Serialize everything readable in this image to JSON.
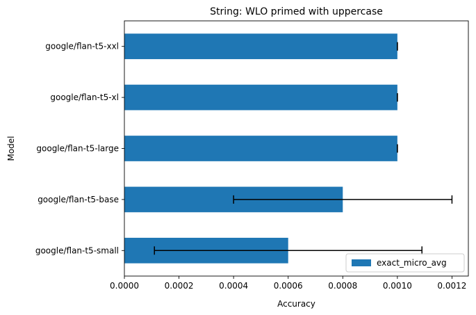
{
  "chart_data": {
    "type": "bar",
    "orientation": "horizontal",
    "title": "String: WLO primed with uppercase",
    "xlabel": "Accuracy",
    "ylabel": "Model",
    "categories": [
      "google/flan-t5-small",
      "google/flan-t5-base",
      "google/flan-t5-large",
      "google/flan-t5-xl",
      "google/flan-t5-xxl"
    ],
    "series": [
      {
        "name": "exact_micro_avg",
        "color": "#1f77b4",
        "values": [
          0.0006,
          0.0008,
          0.001,
          0.001,
          0.001
        ],
        "error_low": [
          0.00011,
          0.0004,
          0.001,
          0.001,
          0.001
        ],
        "error_high": [
          0.00109,
          0.0012,
          0.001,
          0.001,
          0.001
        ]
      }
    ],
    "xlim": [
      0,
      0.00126
    ],
    "xticks": [
      0,
      0.0002,
      0.0004,
      0.0006,
      0.0008,
      0.001,
      0.0012
    ],
    "xtick_labels": [
      "0.0000",
      "0.0002",
      "0.0004",
      "0.0006",
      "0.0008",
      "0.0010",
      "0.0012"
    ],
    "grid": false,
    "legend_position": "lower-right"
  }
}
